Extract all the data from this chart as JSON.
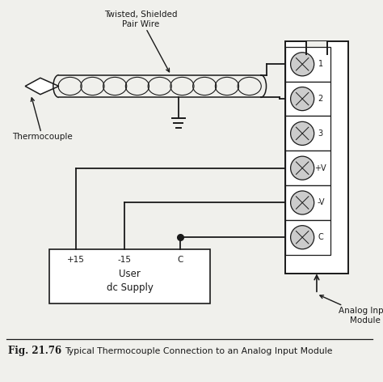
{
  "bg_color": "#f0f0ec",
  "line_color": "#1a1a1a",
  "title_text": "Fig. 21.76",
  "caption_text": "Typical Thermocouple Connection to an Analog Input Module",
  "label_twisted": "Twisted, Shielded\nPair Wire",
  "label_thermocouple": "Thermocouple",
  "label_analog": "Analog Input\nModule",
  "label_supply": "User\ndc Supply",
  "terminals": [
    "1",
    "2",
    "3",
    "+V",
    "-V",
    "C"
  ],
  "supply_labels": [
    "+15",
    "-15",
    "C"
  ],
  "figsize": [
    4.74,
    4.72
  ],
  "dpi": 100,
  "xlim": [
    0,
    10
  ],
  "ylim": [
    0,
    10
  ]
}
